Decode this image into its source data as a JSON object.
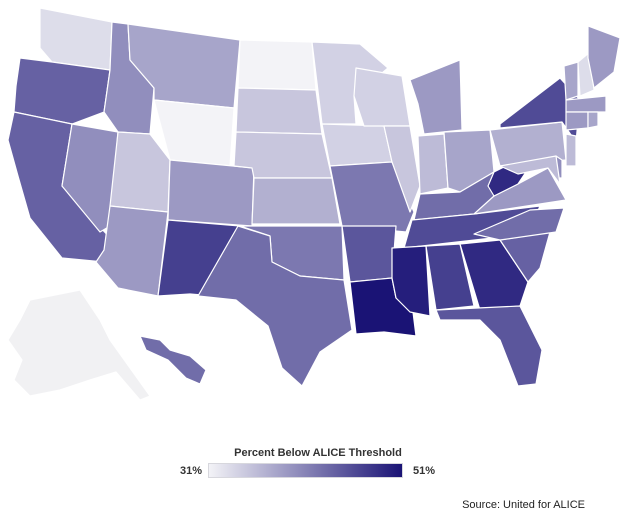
{
  "chart_data": {
    "type": "choropleth",
    "legend": {
      "title": "Percent Below ALICE Threshold",
      "min_label": "31%",
      "max_label": "51%",
      "min": 31,
      "max": 51
    },
    "source": "Source: United for ALICE",
    "colors": {
      "low": "#f3f3f7",
      "high": "#1a1375",
      "no_data": "#f1f1f3"
    },
    "states": [
      {
        "id": "WA",
        "value": 33
      },
      {
        "id": "OR",
        "value": 44
      },
      {
        "id": "CA",
        "value": 44
      },
      {
        "id": "NV",
        "value": 40
      },
      {
        "id": "ID",
        "value": 40
      },
      {
        "id": "MT",
        "value": 38
      },
      {
        "id": "WY",
        "value": 31
      },
      {
        "id": "UT",
        "value": 35
      },
      {
        "id": "AZ",
        "value": 39
      },
      {
        "id": "CO",
        "value": 39
      },
      {
        "id": "NM",
        "value": 47
      },
      {
        "id": "ND",
        "value": 31
      },
      {
        "id": "SD",
        "value": 35
      },
      {
        "id": "NE",
        "value": 35
      },
      {
        "id": "KS",
        "value": 37
      },
      {
        "id": "OK",
        "value": 42
      },
      {
        "id": "TX",
        "value": 43
      },
      {
        "id": "MN",
        "value": 34
      },
      {
        "id": "IA",
        "value": 34
      },
      {
        "id": "MO",
        "value": 42
      },
      {
        "id": "AR",
        "value": 45
      },
      {
        "id": "LA",
        "value": 51
      },
      {
        "id": "WI",
        "value": 34
      },
      {
        "id": "IL",
        "value": 35
      },
      {
        "id": "MI",
        "value": 39
      },
      {
        "id": "IN",
        "value": 36
      },
      {
        "id": "OH",
        "value": 38
      },
      {
        "id": "KY",
        "value": 43
      },
      {
        "id": "TN",
        "value": 46
      },
      {
        "id": "MS",
        "value": 50
      },
      {
        "id": "AL",
        "value": 47
      },
      {
        "id": "GA",
        "value": 49
      },
      {
        "id": "FL",
        "value": 45
      },
      {
        "id": "SC",
        "value": 44
      },
      {
        "id": "NC",
        "value": 43
      },
      {
        "id": "VA",
        "value": 39
      },
      {
        "id": "WV",
        "value": 49
      },
      {
        "id": "PA",
        "value": 37
      },
      {
        "id": "NY",
        "value": 46
      },
      {
        "id": "VT",
        "value": 38
      },
      {
        "id": "NH",
        "value": 33
      },
      {
        "id": "ME",
        "value": 39
      },
      {
        "id": "MA",
        "value": 39
      },
      {
        "id": "CT",
        "value": 39
      },
      {
        "id": "RI",
        "value": 38
      },
      {
        "id": "NJ",
        "value": 36
      },
      {
        "id": "DE",
        "value": 40
      },
      {
        "id": "MD",
        "value": 36
      },
      {
        "id": "HI",
        "value": 43
      },
      {
        "id": "AK",
        "value": null
      }
    ]
  }
}
